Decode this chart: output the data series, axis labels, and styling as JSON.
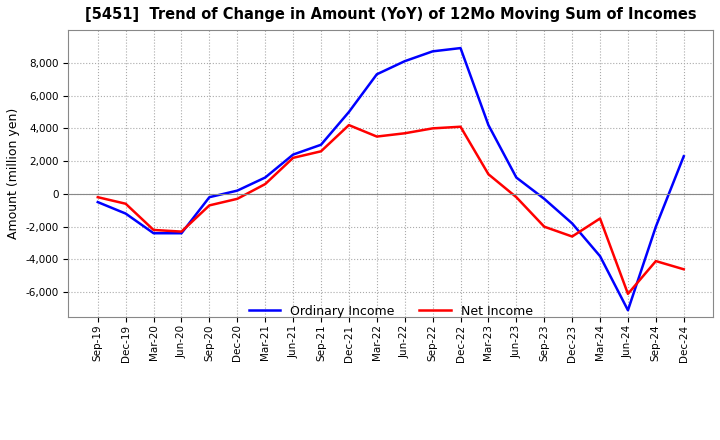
{
  "title": "[5451]  Trend of Change in Amount (YoY) of 12Mo Moving Sum of Incomes",
  "ylabel": "Amount (million yen)",
  "ylim": [
    -7500,
    10000
  ],
  "yticks": [
    -6000,
    -4000,
    -2000,
    0,
    2000,
    4000,
    6000,
    8000
  ],
  "x_labels": [
    "Sep-19",
    "Dec-19",
    "Mar-20",
    "Jun-20",
    "Sep-20",
    "Dec-20",
    "Mar-21",
    "Jun-21",
    "Sep-21",
    "Dec-21",
    "Mar-22",
    "Jun-22",
    "Sep-22",
    "Dec-22",
    "Mar-23",
    "Jun-23",
    "Sep-23",
    "Dec-23",
    "Mar-24",
    "Jun-24",
    "Sep-24",
    "Dec-24"
  ],
  "ordinary_income": [
    -500,
    -1200,
    -2400,
    -2400,
    -200,
    200,
    1000,
    2400,
    3000,
    5000,
    7300,
    8100,
    8700,
    8900,
    4200,
    1000,
    -300,
    -1800,
    -3800,
    -7100,
    -2000,
    2300
  ],
  "net_income": [
    -200,
    -600,
    -2200,
    -2300,
    -700,
    -300,
    600,
    2200,
    2600,
    4200,
    3500,
    3700,
    4000,
    4100,
    1200,
    -200,
    -2000,
    -2600,
    -1500,
    -6100,
    -4100,
    -4600
  ],
  "ordinary_color": "#0000ff",
  "net_color": "#ff0000",
  "grid_color": "#aaaaaa",
  "background_color": "#ffffff",
  "legend_labels": [
    "Ordinary Income",
    "Net Income"
  ]
}
